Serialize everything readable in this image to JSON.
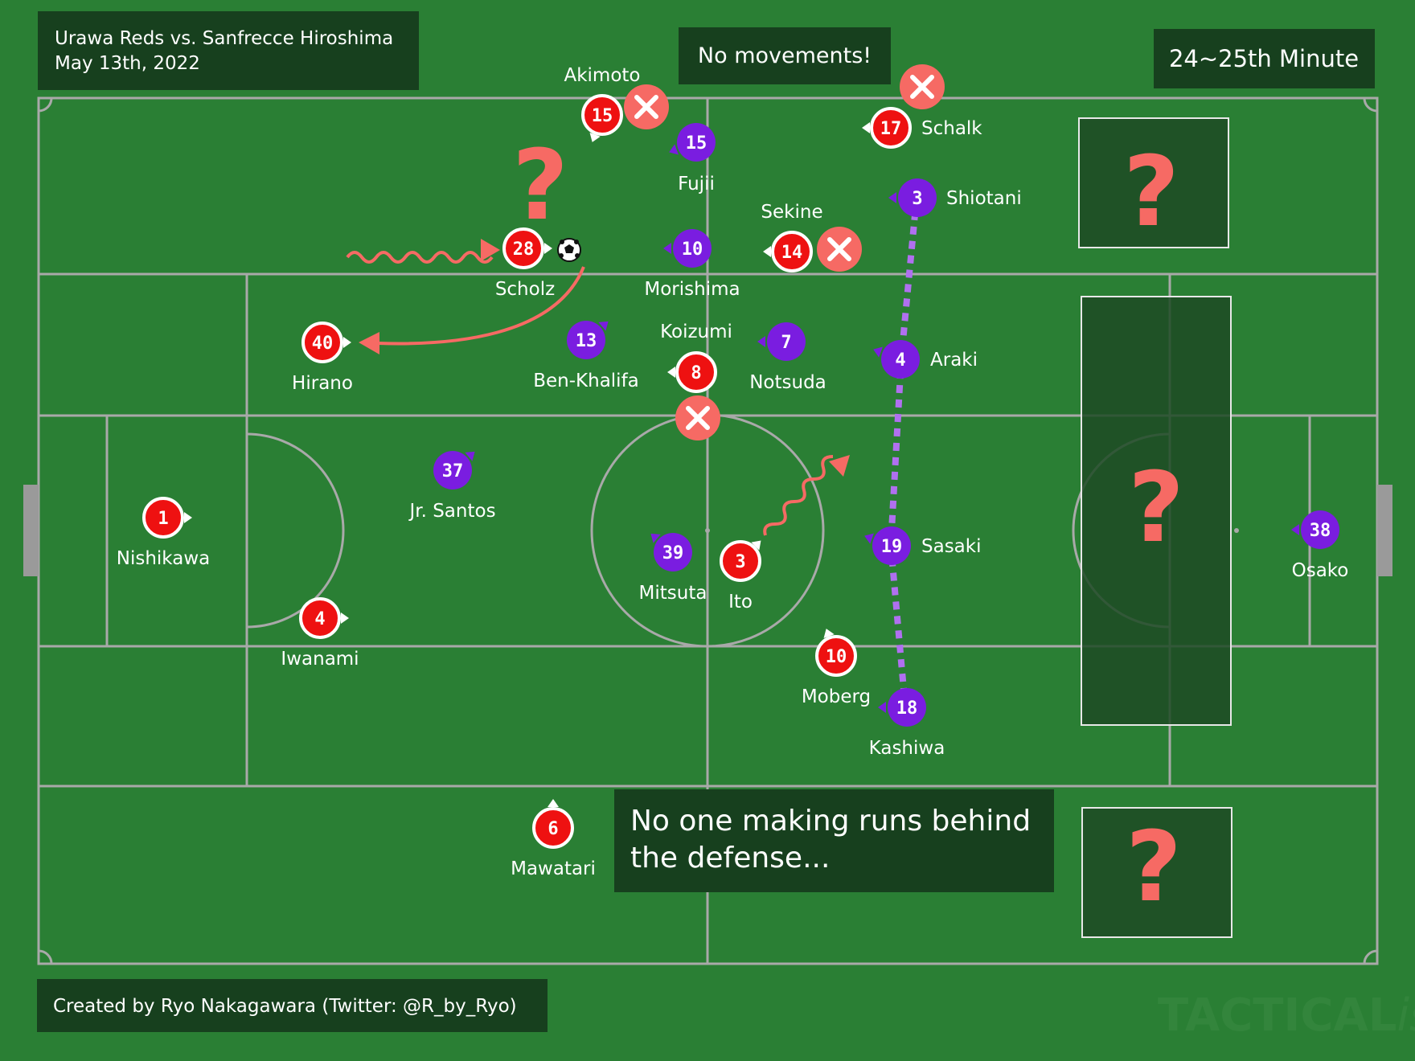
{
  "header": {
    "match_line1": "Urawa Reds vs. Sanfrecce Hiroshima",
    "match_line2": "May 13th, 2022",
    "minute": "24~25th Minute"
  },
  "annotations": {
    "no_movements": "No movements!",
    "no_runs_line1": "No one making runs behind",
    "no_runs_line2": "the defense...",
    "question_mark": "?"
  },
  "footer": {
    "credit": "Created by Ryo Nakagawara (Twitter: @R_by_Ryo)",
    "watermark_a": "TACTICAL",
    "watermark_b": "ista"
  },
  "colors": {
    "pitch": "#2a7f34",
    "lines": "#a9a9a9",
    "panel": "#17401e",
    "urawa": "#ee1111",
    "hiroshima": "#7a1de0",
    "accent": "#f66a64",
    "pass_line": "#b070f0"
  },
  "players": {
    "urawa": [
      {
        "number": "1",
        "name": "Nishikawa"
      },
      {
        "number": "4",
        "name": "Iwanami"
      },
      {
        "number": "40",
        "name": "Hirano"
      },
      {
        "number": "28",
        "name": "Scholz"
      },
      {
        "number": "15",
        "name": "Akimoto"
      },
      {
        "number": "8",
        "name": "Koizumi"
      },
      {
        "number": "3",
        "name": "Ito"
      },
      {
        "number": "14",
        "name": "Sekine"
      },
      {
        "number": "17",
        "name": "Schalk"
      },
      {
        "number": "10",
        "name": "Moberg"
      },
      {
        "number": "6",
        "name": "Mawatari"
      }
    ],
    "hiroshima": [
      {
        "number": "15",
        "name": "Fujii"
      },
      {
        "number": "10",
        "name": "Morishima"
      },
      {
        "number": "13",
        "name": "Ben-Khalifa"
      },
      {
        "number": "7",
        "name": "Notsuda"
      },
      {
        "number": "37",
        "name": "Jr. Santos"
      },
      {
        "number": "39",
        "name": "Mitsuta"
      },
      {
        "number": "3",
        "name": "Shiotani"
      },
      {
        "number": "4",
        "name": "Araki"
      },
      {
        "number": "19",
        "name": "Sasaki"
      },
      {
        "number": "18",
        "name": "Kashiwa"
      },
      {
        "number": "38",
        "name": "Osako"
      }
    ]
  }
}
